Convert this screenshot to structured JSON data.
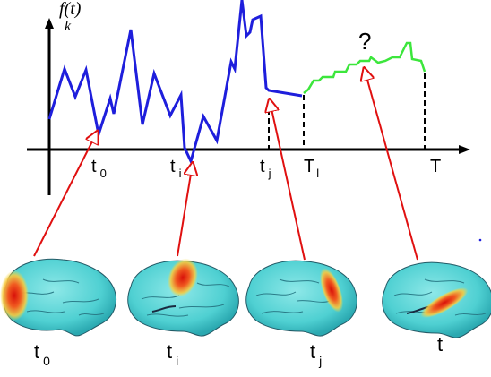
{
  "figure": {
    "y_label_main": "f(t)",
    "y_label_sub": "k",
    "question_mark": "?",
    "axis_ticks": [
      {
        "main": "t",
        "sub": "0"
      },
      {
        "main": "t",
        "sub": "i"
      },
      {
        "main": "t",
        "sub": "j"
      },
      {
        "main": "T",
        "sub": "l"
      },
      {
        "main": "T",
        "sub": ""
      }
    ],
    "brain_labels": [
      {
        "main": "t",
        "sub": "0"
      },
      {
        "main": "t",
        "sub": "i"
      },
      {
        "main": "t",
        "sub": "j"
      },
      {
        "main": "t",
        "sub": ""
      }
    ],
    "colors": {
      "observed_curve": "#1e1edc",
      "predicted_curve": "#3ce63c",
      "arrow": "#e01010",
      "brain_fill": "#4fd6d6",
      "activation": "#e83a1e",
      "axis": "#000000"
    }
  }
}
